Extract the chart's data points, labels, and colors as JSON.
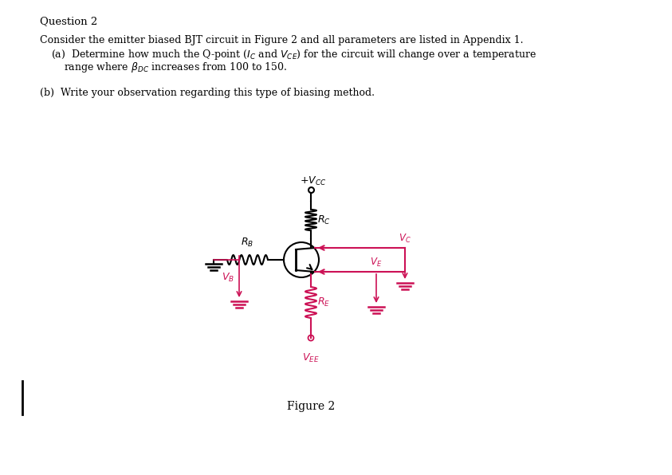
{
  "title": "Question 2",
  "bg_color": "#ffffff",
  "text_color": "#000000",
  "circuit_color": "#000000",
  "highlight_color": "#cc1155",
  "figure_caption": "Figure 2",
  "figsize": [
    8.43,
    5.96
  ],
  "dpi": 100
}
